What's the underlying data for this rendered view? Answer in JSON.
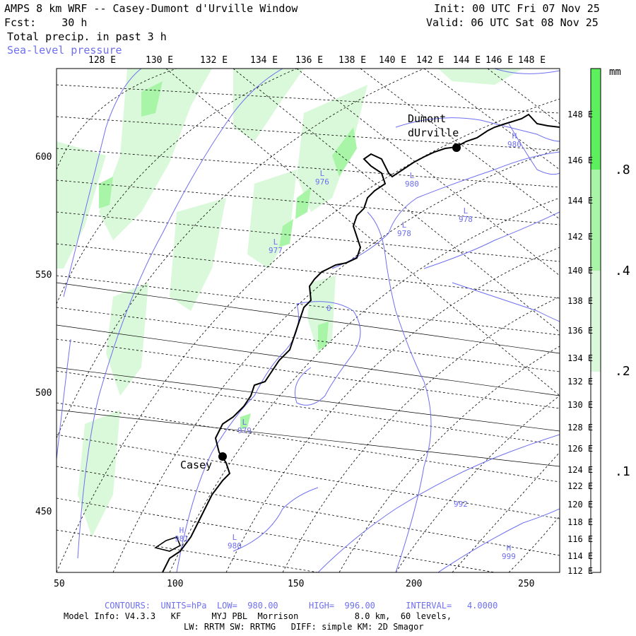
{
  "header": {
    "title": "AMPS 8 km WRF -- Casey-Dumont d'Urville Window",
    "forecast": "Fcst:    30 h",
    "field": "Total precip. in past 3 h",
    "overlay": "Sea-level pressure",
    "init": "Init: 00 UTC Fri 07 Nov 25",
    "valid": "Valid: 06 UTC Sat 08 Nov 25"
  },
  "top_longitudes": [
    "128 E",
    "130 E",
    "132 E",
    "134 E",
    "136 E",
    "138 E",
    "140 E",
    "142 E",
    "144 E",
    "146 E",
    "148 E"
  ],
  "right_longitudes": [
    "148 E",
    "146 E",
    "144 E",
    "142 E",
    "140 E",
    "138 E",
    "136 E",
    "134 E",
    "132 E",
    "130 E",
    "128 E",
    "126 E",
    "124 E",
    "122 E",
    "120 E",
    "118 E",
    "116 E",
    "114 E",
    "112 E"
  ],
  "left_ticks": [
    "600",
    "550",
    "500",
    "450"
  ],
  "bottom_ticks": [
    "50",
    "100",
    "150",
    "200",
    "250"
  ],
  "colorbar": {
    "unit": "mm",
    "labels": [
      ".8",
      ".4",
      ".2",
      ".1"
    ],
    "colors": [
      "#5cf05c",
      "#a8f5a8",
      "#daf9da",
      "#ffffff"
    ]
  },
  "stations": [
    {
      "name": "Casey"
    },
    {
      "name": "Dumont\ndUrville"
    }
  ],
  "pressure_labels": [
    {
      "type": "H",
      "value": "980"
    },
    {
      "type": "L",
      "value": "980"
    },
    {
      "type": "L",
      "value": "976"
    },
    {
      "type": "L",
      "value": "978"
    },
    {
      "type": "L",
      "value": "978"
    },
    {
      "type": "L",
      "value": "977"
    },
    {
      "type": "",
      "value": "0"
    },
    {
      "type": "L",
      "value": "979"
    },
    {
      "type": "H",
      "value": "981"
    },
    {
      "type": "L",
      "value": "980"
    },
    {
      "type": "",
      "value": "992"
    },
    {
      "type": "H",
      "value": "999"
    }
  ],
  "footer": {
    "contours": "CONTOURS:  UNITS=hPa  LOW=  980.00      HIGH=  996.00      INTERVAL=   4.0000",
    "model": "Model Info: V4.3.3   KF      MYJ PBL  Morrison           8.0 km,  60 levels,",
    "physics": "LW: RRTM SW: RRTMG   DIFF: simple KM: 2D Smagor"
  }
}
